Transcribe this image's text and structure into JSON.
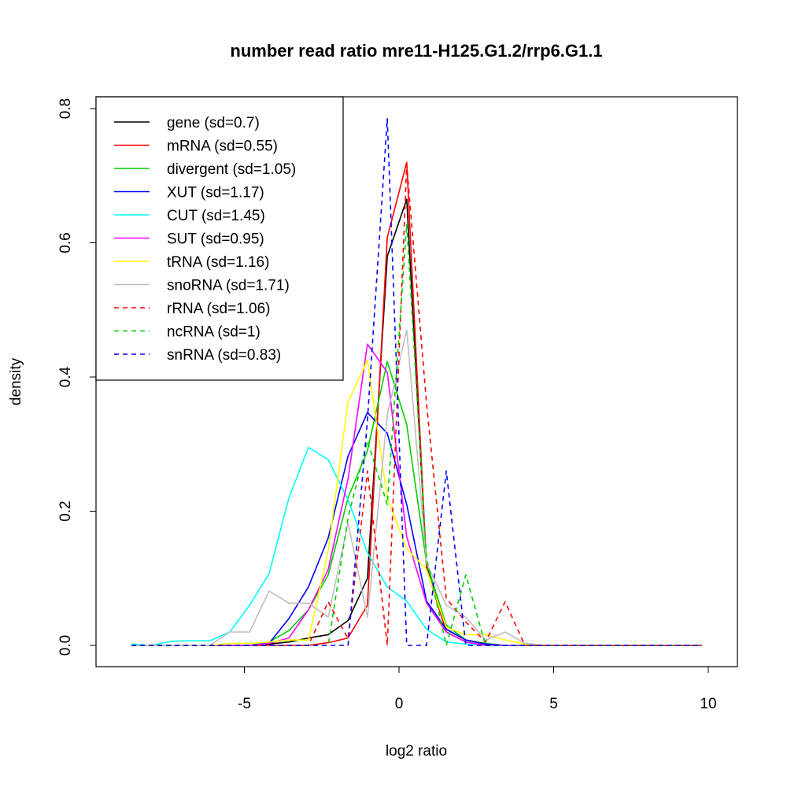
{
  "chart_data": {
    "type": "line",
    "title": "number read ratio mre11-H125.G1.2/rrp6.G1.1",
    "xlabel": "log2 ratio",
    "ylabel": "density",
    "xlim": [
      -9.1,
      10.9
    ],
    "ylim": [
      -0.032,
      0.817
    ],
    "xticks": [
      -5,
      0,
      5,
      10
    ],
    "xtick_labels": [
      "-5",
      "0",
      "5",
      "10"
    ],
    "yticks": [
      0,
      0.2,
      0.4,
      0.6,
      0.8
    ],
    "ytick_labels": [
      "0.0",
      "0.2",
      "0.4",
      "0.6",
      "0.8"
    ],
    "grid": false,
    "legend_position": "top-left",
    "x": [
      -8.65,
      -8.01,
      -7.38,
      -6.74,
      -6.11,
      -5.47,
      -4.83,
      -4.2,
      -3.56,
      -2.93,
      -2.29,
      -1.65,
      -1.02,
      -0.38,
      0.25,
      0.89,
      1.53,
      2.16,
      2.8,
      3.43,
      4.07,
      4.71,
      5.34,
      5.98,
      6.61,
      7.25,
      7.89,
      8.52,
      9.16,
      9.79
    ],
    "series": [
      {
        "name": "gene (sd=0.7)",
        "color": "#000000",
        "dashed": false,
        "values": [
          0,
          0,
          0,
          0,
          0,
          0,
          0,
          0.002,
          0.005,
          0.011,
          0.016,
          0.037,
          0.1,
          0.58,
          0.665,
          0.118,
          0.024,
          0.008,
          0.002,
          0,
          0,
          0,
          0,
          0,
          0,
          0,
          0,
          0,
          0,
          0
        ]
      },
      {
        "name": "mRNA (sd=0.55)",
        "color": "#ff0000",
        "dashed": false,
        "values": [
          0,
          0,
          0,
          0,
          0,
          0,
          0,
          0,
          0,
          0,
          0.004,
          0.011,
          0.06,
          0.608,
          0.72,
          0.115,
          0.02,
          0.005,
          0,
          0,
          0,
          0,
          0,
          0,
          0,
          0,
          0,
          0,
          0,
          0
        ]
      },
      {
        "name": "divergent (sd=1.05)",
        "color": "#00cd00",
        "dashed": false,
        "values": [
          0,
          0,
          0,
          0,
          0,
          0,
          0,
          0.005,
          0.022,
          0.053,
          0.105,
          0.22,
          0.29,
          0.423,
          0.329,
          0.123,
          0.03,
          0.008,
          0.003,
          0,
          0,
          0,
          0,
          0,
          0,
          0,
          0,
          0,
          0,
          0
        ]
      },
      {
        "name": "XUT (sd=1.17)",
        "color": "#0000ff",
        "dashed": false,
        "values": [
          0,
          0,
          0,
          0,
          0,
          0,
          0,
          0.003,
          0.04,
          0.087,
          0.16,
          0.282,
          0.347,
          0.316,
          0.21,
          0.066,
          0.024,
          0.008,
          0.002,
          0,
          0,
          0,
          0,
          0,
          0,
          0,
          0,
          0,
          0,
          0
        ]
      },
      {
        "name": "CUT (sd=1.45)",
        "color": "#00ffff",
        "dashed": false,
        "values": [
          0.002,
          0,
          0.006,
          0.007,
          0.007,
          0.02,
          0.06,
          0.107,
          0.22,
          0.295,
          0.277,
          0.217,
          0.138,
          0.087,
          0.066,
          0.024,
          0.005,
          0.002,
          0,
          0,
          0,
          0,
          0,
          0,
          0,
          0,
          0,
          0,
          0,
          0
        ]
      },
      {
        "name": "SUT (sd=0.95)",
        "color": "#ff00ff",
        "dashed": false,
        "values": [
          0,
          0,
          0,
          0,
          0,
          0,
          0,
          0.003,
          0.011,
          0.053,
          0.113,
          0.248,
          0.449,
          0.407,
          0.162,
          0.063,
          0.02,
          0.005,
          0,
          0,
          0,
          0,
          0,
          0,
          0,
          0,
          0,
          0,
          0,
          0
        ]
      },
      {
        "name": "tRNA (sd=1.16)",
        "color": "#ffff00",
        "dashed": false,
        "values": [
          0,
          0,
          0,
          0,
          0,
          0.003,
          0.003,
          0.005,
          0.008,
          0.008,
          0.141,
          0.363,
          0.425,
          0.22,
          0.144,
          0.113,
          0.027,
          0.016,
          0.016,
          0.008,
          0.002,
          0,
          0,
          0,
          0,
          0,
          0,
          0,
          0,
          0
        ]
      },
      {
        "name": "snoRNA (sd=1.71)",
        "color": "#bebebe",
        "dashed": false,
        "values": [
          0,
          0,
          0,
          0,
          0,
          0.02,
          0.02,
          0.081,
          0.063,
          0.063,
          0.042,
          0.183,
          0.042,
          0.344,
          0.47,
          0.123,
          0.06,
          0.042,
          0.008,
          0.02,
          0.003,
          0,
          0,
          0,
          0,
          0,
          0,
          0,
          0,
          0
        ]
      },
      {
        "name": "rRNA (sd=1.06)",
        "color": "#ff0000",
        "dashed": true,
        "values": [
          0,
          0,
          0,
          0,
          0,
          0,
          0,
          0,
          0,
          0,
          0.065,
          0.01,
          0.26,
          0,
          0.717,
          0.36,
          0.07,
          0.035,
          0.005,
          0.065,
          0,
          0,
          0,
          0,
          0,
          0,
          0,
          0,
          0,
          0
        ]
      },
      {
        "name": "ncRNA (sd=1)",
        "color": "#00cd00",
        "dashed": true,
        "values": [
          0,
          0,
          0,
          0,
          0,
          0,
          0,
          0,
          0,
          0,
          0,
          0.19,
          0.305,
          0.21,
          0.628,
          0.13,
          0,
          0.105,
          0,
          0,
          0,
          0,
          0,
          0,
          0,
          0,
          0,
          0,
          0,
          0
        ]
      },
      {
        "name": "snRNA (sd=0.83)",
        "color": "#0000ff",
        "dashed": true,
        "values": [
          0,
          0,
          0,
          0,
          0,
          0,
          0,
          0,
          0,
          0,
          0,
          0,
          0.336,
          0.785,
          0,
          0,
          0.26,
          0,
          0,
          0,
          0,
          0,
          0,
          0,
          0,
          0,
          0,
          0,
          0,
          0
        ]
      }
    ]
  }
}
